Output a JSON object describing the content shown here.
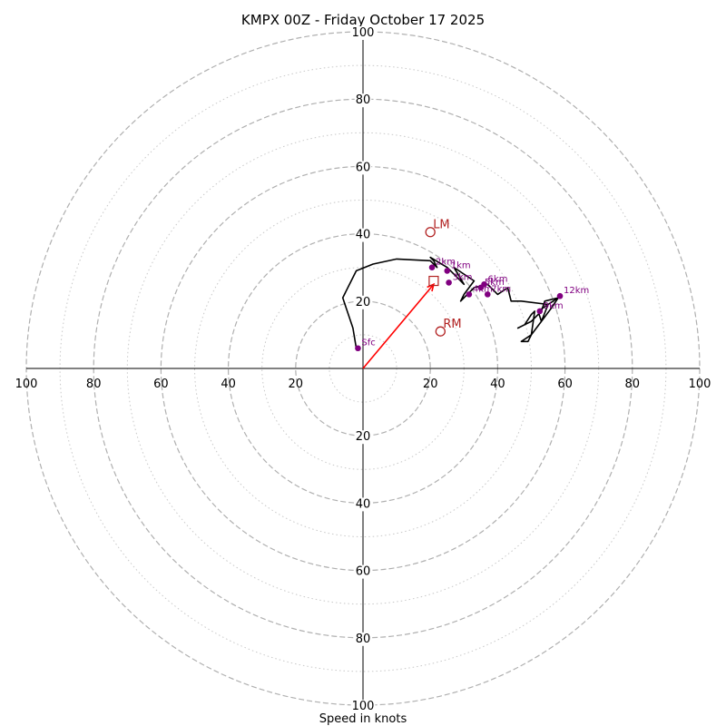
{
  "chart_data": {
    "type": "hodograph",
    "title": "KMPX 00Z - Friday October 17 2025",
    "xlabel": "Speed in knots",
    "units": "knots",
    "range": [
      -100,
      100
    ],
    "tick_step": 20,
    "tick_labels": [
      "100",
      "80",
      "60",
      "40",
      "20",
      "20",
      "40",
      "60",
      "80",
      "100"
    ],
    "y_tick_labels": [
      "100",
      "80",
      "60",
      "40",
      "20",
      "20",
      "40",
      "60",
      "80",
      "100"
    ],
    "ring_major": [
      20,
      40,
      60,
      80,
      100
    ],
    "ring_minor": [
      10,
      30,
      50,
      70,
      90
    ],
    "trace": [
      [
        -2,
        6
      ],
      [
        -3,
        12
      ],
      [
        -5,
        18
      ],
      [
        -6,
        21
      ],
      [
        -2,
        29
      ],
      [
        3,
        31
      ],
      [
        10,
        32.5
      ],
      [
        20,
        32
      ],
      [
        22,
        30
      ],
      [
        21,
        32
      ],
      [
        20,
        33
      ],
      [
        25,
        30
      ],
      [
        28,
        27
      ],
      [
        30,
        25
      ],
      [
        27,
        30
      ],
      [
        33,
        26
      ],
      [
        30,
        22
      ],
      [
        29,
        20
      ],
      [
        33,
        24
      ],
      [
        37,
        25
      ],
      [
        40,
        22
      ],
      [
        43,
        24
      ],
      [
        44,
        20
      ],
      [
        47,
        20
      ],
      [
        55,
        19
      ],
      [
        53,
        14
      ],
      [
        56,
        18
      ],
      [
        58,
        21
      ],
      [
        54,
        20
      ],
      [
        53,
        17
      ],
      [
        50,
        14
      ],
      [
        48,
        13
      ],
      [
        46,
        12
      ],
      [
        48,
        13
      ],
      [
        50,
        16
      ],
      [
        51,
        17
      ],
      [
        50,
        10
      ],
      [
        49,
        8
      ],
      [
        47,
        8
      ],
      [
        50,
        10
      ],
      [
        53,
        14
      ],
      [
        52,
        17
      ],
      [
        55,
        19
      ],
      [
        58,
        21
      ]
    ],
    "height_points": [
      {
        "label": "Sfc",
        "u": -1.5,
        "v": 6
      },
      {
        "label": "1km",
        "u": 25,
        "v": 29
      },
      {
        "label": "2km",
        "u": 20.5,
        "v": 30
      },
      {
        "label": "3km",
        "u": 25.5,
        "v": 25.5
      },
      {
        "label": "4km",
        "u": 31.5,
        "v": 22
      },
      {
        "label": "5km",
        "u": 35,
        "v": 24
      },
      {
        "label": "6km",
        "u": 36,
        "v": 25
      },
      {
        "label": "7km",
        "u": 37,
        "v": 22
      },
      {
        "label": "9km",
        "u": 52.5,
        "v": 17
      },
      {
        "label": "12km",
        "u": 58.5,
        "v": 21.5
      }
    ],
    "mean_wind": {
      "u": 21,
      "v": 26
    },
    "storm_motion_arrow": {
      "u": 21,
      "v": 25
    },
    "storm_motions": [
      {
        "label": "LM",
        "u": 20,
        "v": 40.5
      },
      {
        "label": "RM",
        "u": 23,
        "v": 11
      }
    ],
    "colors": {
      "trace": "#000000",
      "height_point": "#800080",
      "storm_motion": "#b22222",
      "shear_arrow": "#ff0000",
      "ring_major": "#b0b0b0",
      "ring_minor": "#c8c8c8"
    }
  }
}
